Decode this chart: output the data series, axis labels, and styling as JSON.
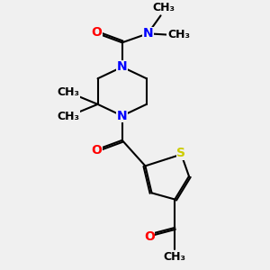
{
  "bg_color": "#f0f0f0",
  "atom_colors": {
    "N": "#0000ff",
    "O": "#ff0000",
    "S": "#cccc00",
    "C": "#000000"
  },
  "bond_color": "#000000",
  "bond_width": 1.5,
  "font_size": 10,
  "fig_size": [
    3.0,
    3.0
  ],
  "dpi": 100,
  "xlim": [
    0,
    10
  ],
  "ylim": [
    0,
    10
  ]
}
